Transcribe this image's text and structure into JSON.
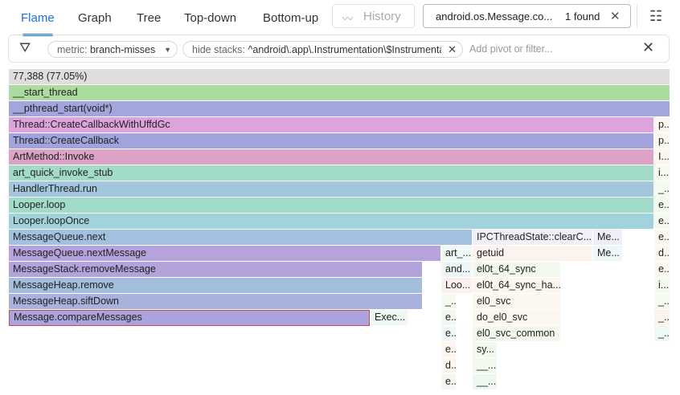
{
  "tabs": [
    {
      "label": "Flame",
      "active": true
    },
    {
      "label": "Graph"
    },
    {
      "label": "Tree"
    },
    {
      "label": "Top-down"
    },
    {
      "label": "Bottom-up"
    }
  ],
  "history": {
    "label": "History",
    "icon": "trend-icon"
  },
  "search": {
    "value": "android.os.Message.co...",
    "result": "1 found"
  },
  "filters": {
    "metric_key": "metric:",
    "metric_value": "branch-misses",
    "hide_key": "hide stacks:",
    "hide_value": "^android\\.app\\.Instrumentation\\$Instrumentati",
    "placeholder": "Add pivot or filter..."
  },
  "colors": {
    "accent": "#1a73e8",
    "highlight_border": "#c0504d"
  },
  "frames": [
    {
      "label": "77,388 (77.05%)",
      "color": "#dedede"
    },
    {
      "label": "__start_thread",
      "color": "#acdb9f"
    },
    {
      "label": "__pthread_start(void*)",
      "color": "#a3a6dd"
    },
    {
      "label": "Thread::CreateCallbackWithUffdGc",
      "color": "#dca3dc"
    },
    {
      "label": "p...",
      "color": "#fbf7ee"
    },
    {
      "label": "Thread::CreateCallback",
      "color": "#a2a2dd"
    },
    {
      "label": "p...",
      "color": "#fbf7ee"
    },
    {
      "label": "ArtMethod::Invoke",
      "color": "#dca3c6"
    },
    {
      "label": "I...",
      "color": "#fbf7ee"
    },
    {
      "label": "art_quick_invoke_stub",
      "color": "#a2dcc8"
    },
    {
      "label": "i...",
      "color": "#f5faf0"
    },
    {
      "label": "HandlerThread.run",
      "color": "#a2c6dc"
    },
    {
      "label": "_...",
      "color": "#f5faf0"
    },
    {
      "label": "Looper.loop",
      "color": "#a2dcc8"
    },
    {
      "label": "e...",
      "color": "#f5faf0"
    },
    {
      "label": "Looper.loopOnce",
      "color": "#a2d2dc"
    },
    {
      "label": "e...",
      "color": "#f5faf0"
    },
    {
      "label": "MessageQueue.next",
      "color": "#a2c0e0"
    },
    {
      "label": "IPCThreadState::clearC...",
      "color": "#f2eff9"
    },
    {
      "label": "Me...",
      "color": "#eeeef9"
    },
    {
      "label": "e...",
      "color": "#fbf7ee"
    },
    {
      "label": "MessageQueue.nextMessage",
      "color": "#b6a3dd"
    },
    {
      "label": "art_...",
      "color": "#eef8f4"
    },
    {
      "label": "getuid",
      "color": "#fcf3ee"
    },
    {
      "label": "Me...",
      "color": "#eef6f9"
    },
    {
      "label": "d...",
      "color": "#fbf7ee"
    },
    {
      "label": "MessageStack.removeMessage",
      "color": "#b2a3dd"
    },
    {
      "label": "and...",
      "color": "#eef7f8"
    },
    {
      "label": "el0t_64_sync",
      "color": "#f2f8ee"
    },
    {
      "label": "e...",
      "color": "#fbf7ee"
    },
    {
      "label": "MessageHeap.remove",
      "color": "#a3bddd"
    },
    {
      "label": "Loo...",
      "color": "#fcefef"
    },
    {
      "label": "el0t_64_sync_ha...",
      "color": "#fbf7ee"
    },
    {
      "label": "i...",
      "color": "#f5faf0"
    },
    {
      "label": "MessageHeap.siftDown",
      "color": "#a8b2dd"
    },
    {
      "label": "_...",
      "color": "#f5faf0"
    },
    {
      "label": "el0_svc",
      "color": "#fbf7ee"
    },
    {
      "label": "_...",
      "color": "#f5faf0"
    },
    {
      "label": "Message.compareMessages",
      "color": "#aaa3dd"
    },
    {
      "label": "Exec...",
      "color": "#eef8ee"
    },
    {
      "label": "e...",
      "color": "#f2f8ee"
    },
    {
      "label": "do_el0_svc",
      "color": "#fbf7ee"
    },
    {
      "label": "_...",
      "color": "#fbf4ee"
    },
    {
      "label": "e...",
      "color": "#eef8f4"
    },
    {
      "label": "el0_svc_common",
      "color": "#f2f8ee"
    },
    {
      "label": "_...",
      "color": "#eef8f4"
    },
    {
      "label": "e...",
      "color": "#fbf7ee"
    },
    {
      "label": "sy...",
      "color": "#f2f8ee"
    },
    {
      "label": "d...",
      "color": "#fbf7ee"
    },
    {
      "label": "__...",
      "color": "#f2f8ee"
    },
    {
      "label": "e...",
      "color": "#f2f8ee"
    },
    {
      "label": "__...",
      "color": "#eef8f0"
    }
  ]
}
